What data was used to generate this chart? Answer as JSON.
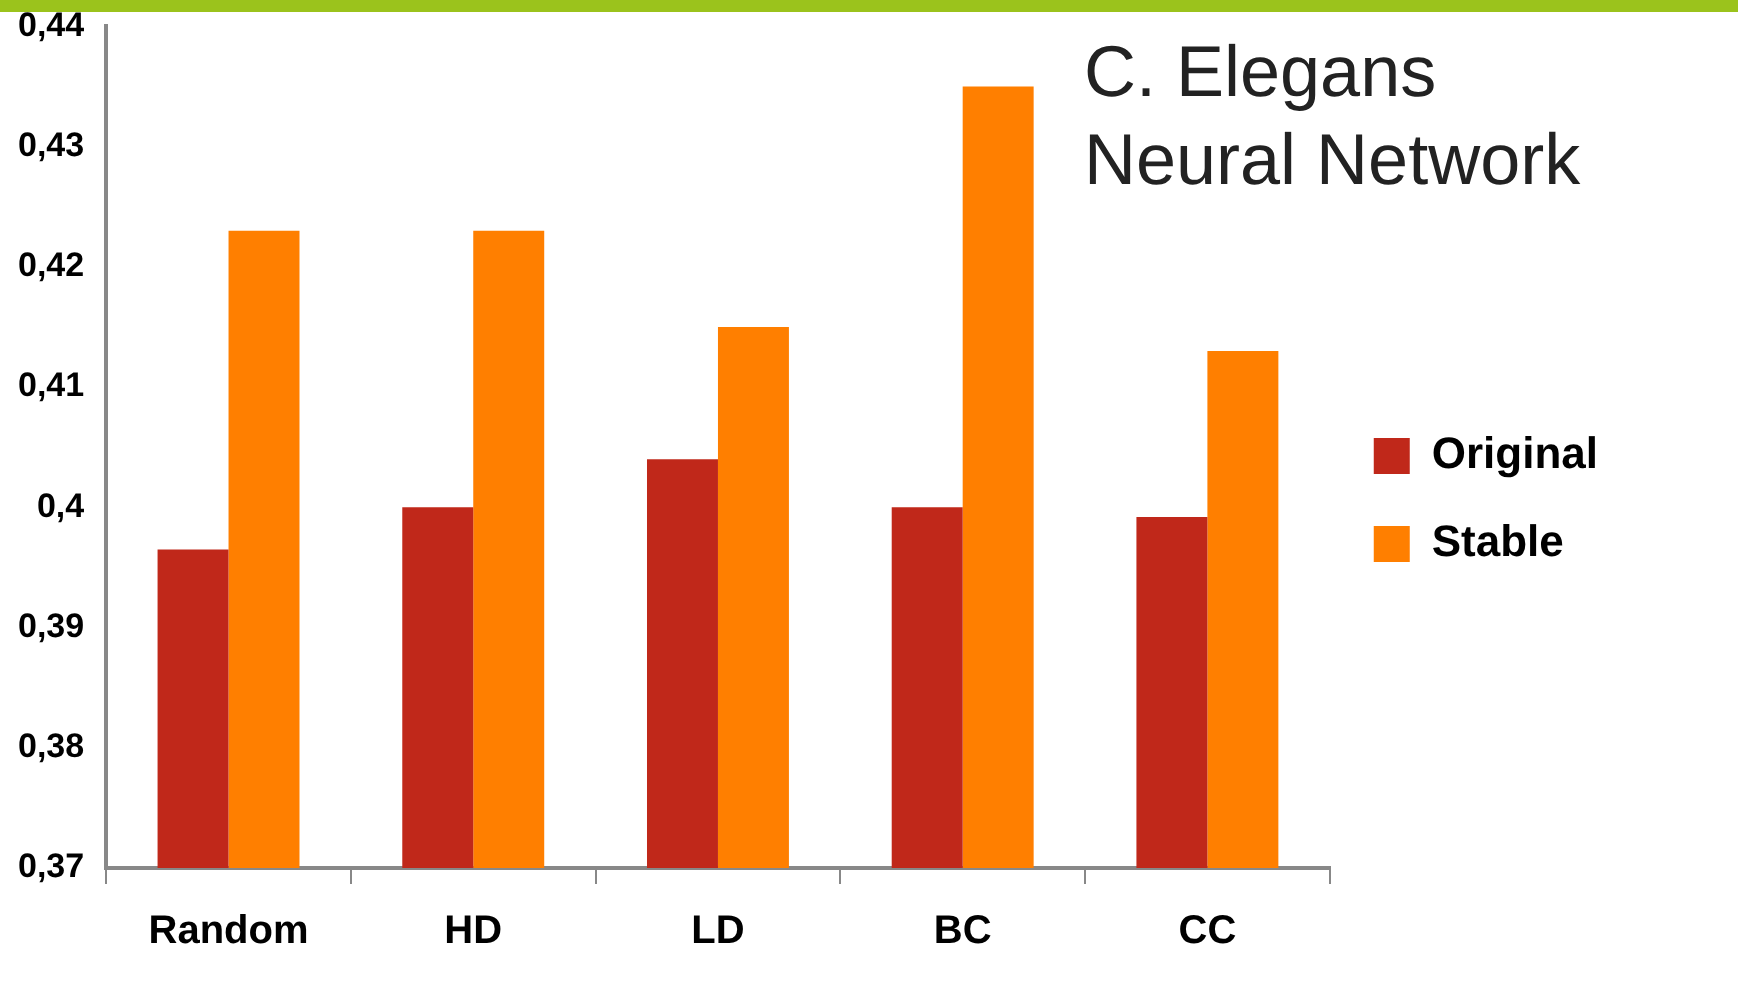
{
  "chart_data": {
    "type": "bar",
    "title": "C. Elegans\nNeural Network",
    "categories": [
      "Random",
      "HD",
      "LD",
      "BC",
      "CC"
    ],
    "series": [
      {
        "name": "Original",
        "color": "#c0281a",
        "values": [
          0.3965,
          0.4,
          0.404,
          0.4,
          0.3992
        ]
      },
      {
        "name": "Stable",
        "color": "#ff7f00",
        "values": [
          0.423,
          0.423,
          0.415,
          0.435,
          0.413
        ]
      }
    ],
    "ylim": [
      0.37,
      0.44
    ],
    "yticks": [
      {
        "value": 0.37,
        "label": "0,37"
      },
      {
        "value": 0.38,
        "label": "0,38"
      },
      {
        "value": 0.39,
        "label": "0,39"
      },
      {
        "value": 0.4,
        "label": "0,4"
      },
      {
        "value": 0.41,
        "label": "0,41"
      },
      {
        "value": 0.42,
        "label": "0,42"
      },
      {
        "value": 0.43,
        "label": "0,43"
      },
      {
        "value": 0.44,
        "label": "0,44"
      }
    ],
    "grid": false,
    "legend": "right"
  }
}
